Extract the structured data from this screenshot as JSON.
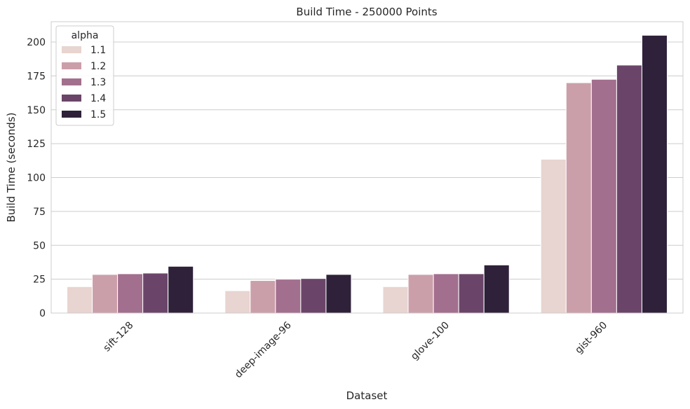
{
  "chart_data": {
    "type": "bar",
    "title": "Build Time - 250000 Points",
    "xlabel": "Dataset",
    "ylabel": "Build Time (seconds)",
    "categories": [
      "sift-128",
      "deep-image-96",
      "glove-100",
      "gist-960"
    ],
    "ylim": [
      0,
      215
    ],
    "yticks": [
      0,
      25,
      50,
      75,
      100,
      125,
      150,
      175,
      200
    ],
    "grid": "y",
    "legend": {
      "title": "alpha",
      "position": "top-left"
    },
    "series": [
      {
        "name": "1.1",
        "color": "#e8d4d0",
        "values": [
          19.5,
          16.5,
          19.5,
          113.5
        ]
      },
      {
        "name": "1.2",
        "color": "#cb9fa9",
        "values": [
          28.5,
          24.0,
          28.5,
          170.0
        ]
      },
      {
        "name": "1.3",
        "color": "#a36f8e",
        "values": [
          29.0,
          25.0,
          29.0,
          172.5
        ]
      },
      {
        "name": "1.4",
        "color": "#6b4569",
        "values": [
          29.5,
          25.5,
          29.0,
          183.0
        ]
      },
      {
        "name": "1.5",
        "color": "#2e2139",
        "values": [
          34.5,
          28.5,
          35.5,
          205.0
        ]
      }
    ]
  }
}
